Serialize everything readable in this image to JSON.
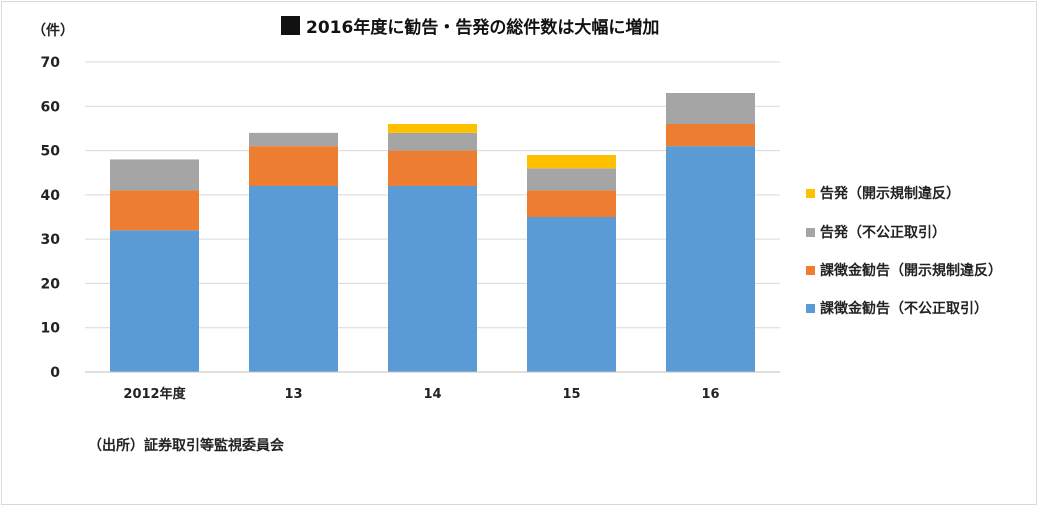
{
  "chart_data": {
    "type": "bar",
    "stacked": true,
    "title": "2016年度に勧告・告発の総件数は大幅に増加",
    "ylabel": "（件）",
    "ylim": [
      0,
      70
    ],
    "yticks": [
      0,
      10,
      20,
      30,
      40,
      50,
      60,
      70
    ],
    "grid": true,
    "legend_position": "right",
    "categories": [
      "2012年度",
      "13",
      "14",
      "15",
      "16"
    ],
    "series": [
      {
        "name": "課徴金勧告（不公正取引）",
        "color": "#5b9bd5",
        "values": [
          32,
          42,
          42,
          35,
          51
        ]
      },
      {
        "name": "課徴金勧告（開示規制違反）",
        "color": "#ed7d31",
        "values": [
          9,
          9,
          8,
          6,
          5
        ]
      },
      {
        "name": "告発（不公正取引）",
        "color": "#a5a5a5",
        "values": [
          7,
          3,
          4,
          5,
          7
        ]
      },
      {
        "name": "告発（開示規制違反）",
        "color": "#ffc000",
        "values": [
          0,
          0,
          2,
          3,
          0
        ]
      }
    ],
    "source": "（出所）証券取引等監視委員会"
  }
}
